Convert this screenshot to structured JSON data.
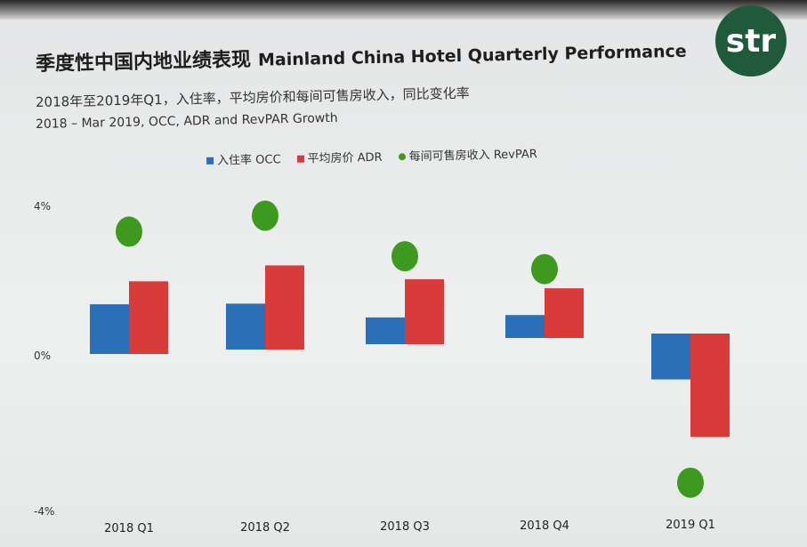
{
  "logo": "str",
  "chart_data": {
    "type": "bar",
    "title": "季度性中国内地业绩表现",
    "title_en": "Mainland China Hotel Quarterly Performance",
    "subtitle": "2018年至2019年Q1，入住率，平均房价和每间可售房收入，同比变化率",
    "subtitle_en": "2018 – Mar 2019, OCC, ADR and RevPAR Growth",
    "categories": [
      "2018 Q1",
      "2018 Q2",
      "2018 Q3",
      "2018 Q4",
      "2019 Q1"
    ],
    "yticks": [
      "4%",
      "0%",
      "-4%"
    ],
    "ylim": [
      -4,
      4
    ],
    "grid": false,
    "legend_position": "top",
    "series": [
      {
        "name": "入住率 OCC",
        "kind": "bar",
        "color": "#2a6fb8",
        "values": [
          1.3,
          1.2,
          0.7,
          0.6,
          -1.2
        ]
      },
      {
        "name": "平均房价 ADR",
        "kind": "bar",
        "color": "#d93a3a",
        "values": [
          1.9,
          2.2,
          1.7,
          1.3,
          -2.7
        ]
      },
      {
        "name": "每间可售房收入 RevPAR",
        "kind": "dot",
        "color": "#3d9a1e",
        "values": [
          3.2,
          3.5,
          2.3,
          1.8,
          -3.9
        ]
      }
    ]
  }
}
